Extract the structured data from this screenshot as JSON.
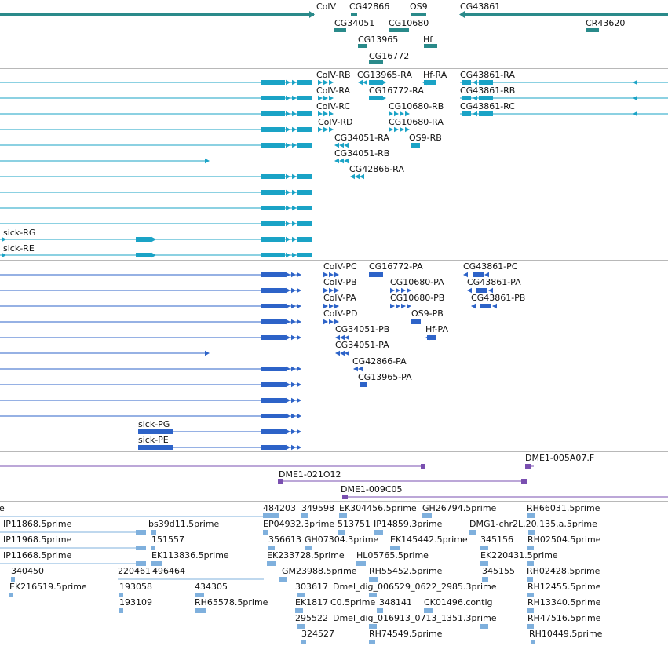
{
  "colors": {
    "genes": "#2a8a8a",
    "transcripts_rna": "#1aa3c6",
    "transcripts_protein": "#2d63c8",
    "clones": "#7a4fb0",
    "ests": "#7fb0dd",
    "separator": "#b8b8b8"
  },
  "tracks": {
    "genes": {
      "labels": [
        "ColV",
        "CG42866",
        "OS9",
        "CG43861",
        "CG34051",
        "CG10680",
        "CR43620",
        "CG13965",
        "Hf",
        "CG16772"
      ]
    },
    "rna": {
      "labels": [
        "ColV-RB",
        "CG13965-RA",
        "Hf-RA",
        "CG43861-RA",
        "ColV-RA",
        "CG16772-RA",
        "CG43861-RB",
        "ColV-RC",
        "CG10680-RB",
        "CG43861-RC",
        "ColV-RD",
        "CG10680-RA",
        "CG34051-RA",
        "OS9-RB",
        "CG34051-RB",
        "CG42866-RA",
        "sick-RG",
        "sick-RE"
      ]
    },
    "protein": {
      "labels": [
        "ColV-PC",
        "CG16772-PA",
        "CG43861-PC",
        "ColV-PB",
        "CG10680-PA",
        "CG43861-PA",
        "ColV-PA",
        "CG10680-PB",
        "CG43861-PB",
        "ColV-PD",
        "OS9-PB",
        "CG34051-PB",
        "Hf-PA",
        "CG34051-PA",
        "CG42866-PA",
        "CG13965-PA",
        "sick-PG",
        "sick-PE"
      ]
    },
    "clones": {
      "labels": [
        "DME1-005A07.F",
        "DME1-021O12",
        "DME1-009C05"
      ]
    },
    "ests": {
      "labels": [
        "e",
        "484203",
        "349598",
        "EK304456.5prime",
        "GH26794.5prime",
        "RH66031.5prime",
        "IP11868.5prime",
        "bs39d11.5prime",
        "EP04932.3prime",
        "513751",
        "IP14859.3prime",
        "DMG1-chr2L.20.135.a.5prime",
        "IP11968.5prime",
        "151557",
        "356613",
        "GH07304.3prime",
        "EK145442.5prime",
        "345156",
        "RH02504.5prime",
        "IP11668.5prime",
        "EK113836.5prime",
        "EK233728.5prime",
        "HL05765.5prime",
        "EK220431.5prime",
        "340450",
        "220461",
        "496464",
        "GM23988.5prime",
        "RH55452.5prime",
        "345155",
        "RH02428.5prime",
        "EK216519.5prime",
        "193058",
        "434305",
        "303617",
        "Dmel_dig_006529_0622_2985.3prime",
        "RH12455.5prime",
        "193109",
        "RH65578.5prime",
        "EK1817",
        "C0.5prime",
        "348141",
        "CK01496.contig",
        "RH13340.5prime",
        "295522",
        "Dmel_dig_016913_0713_1351.3prime",
        "RH47516.5prime",
        "324527",
        "RH74549.5prime",
        "RH10449.5prime"
      ]
    }
  }
}
